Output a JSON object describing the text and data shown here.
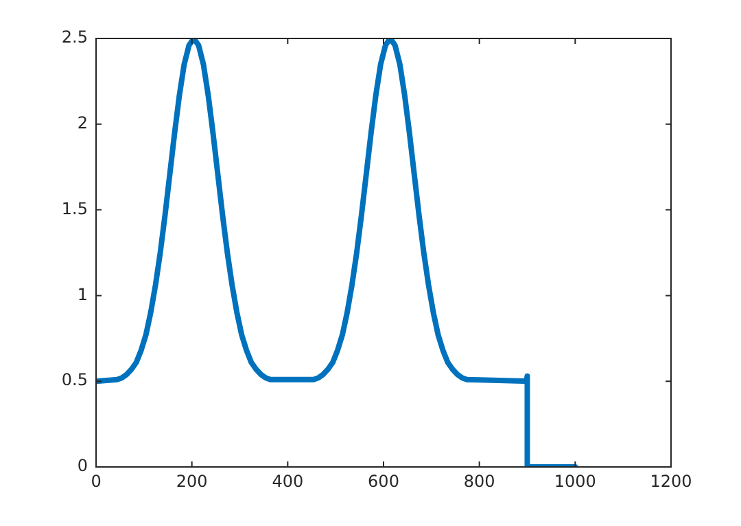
{
  "chart_data": {
    "type": "line",
    "x": [
      0,
      44,
      54,
      64,
      74,
      84,
      94,
      104,
      114,
      124,
      134,
      144,
      154,
      164,
      174,
      184,
      194,
      204,
      214,
      224,
      234,
      244,
      254,
      264,
      274,
      284,
      294,
      304,
      314,
      324,
      334,
      344,
      354,
      364,
      454,
      464,
      474,
      484,
      494,
      504,
      514,
      524,
      534,
      544,
      554,
      564,
      574,
      584,
      594,
      604,
      614,
      624,
      634,
      644,
      654,
      664,
      674,
      684,
      694,
      704,
      714,
      724,
      734,
      744,
      754,
      764,
      774,
      898,
      900,
      900,
      1000
    ],
    "series": [
      {
        "color": "#0072bd",
        "values": [
          0.5,
          0.51,
          0.52,
          0.54,
          0.57,
          0.61,
          0.68,
          0.77,
          0.9,
          1.06,
          1.25,
          1.47,
          1.71,
          1.95,
          2.17,
          2.35,
          2.46,
          2.5,
          2.46,
          2.35,
          2.17,
          1.95,
          1.71,
          1.47,
          1.25,
          1.06,
          0.9,
          0.77,
          0.68,
          0.61,
          0.57,
          0.54,
          0.52,
          0.51,
          0.51,
          0.52,
          0.54,
          0.57,
          0.61,
          0.68,
          0.77,
          0.9,
          1.06,
          1.25,
          1.47,
          1.71,
          1.95,
          2.17,
          2.35,
          2.46,
          2.5,
          2.46,
          2.35,
          2.17,
          1.95,
          1.71,
          1.47,
          1.25,
          1.06,
          0.9,
          0.77,
          0.68,
          0.61,
          0.57,
          0.54,
          0.52,
          0.51,
          0.5,
          0.53,
          0,
          0
        ]
      }
    ],
    "xlim": [
      0,
      1200
    ],
    "xticks": [
      0,
      200,
      400,
      600,
      800,
      1000,
      1200
    ],
    "ylim": [
      0,
      2.5
    ],
    "yticks": [
      0,
      0.5,
      1,
      1.5,
      2,
      2.5
    ],
    "grid": false,
    "legend": false,
    "marker": "none",
    "line_style": "solid"
  }
}
